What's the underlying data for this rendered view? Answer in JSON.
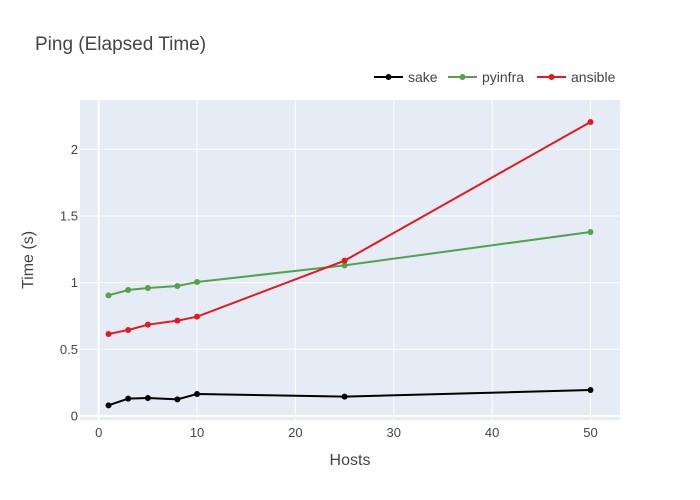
{
  "chart_data": {
    "type": "line",
    "title": "Ping (Elapsed Time)",
    "xlabel": "Hosts",
    "ylabel": "Time (s)",
    "xlim": [
      -1.9,
      53
    ],
    "ylim": [
      -0.03,
      2.37
    ],
    "x_ticks": [
      0,
      10,
      20,
      30,
      40,
      50
    ],
    "x_tick_labels": [
      "0",
      "10",
      "20",
      "30",
      "40",
      "50"
    ],
    "y_ticks": [
      0,
      0.5,
      1,
      1.5,
      2
    ],
    "y_tick_labels": [
      "0",
      "0.5",
      "1",
      "1.5",
      "2"
    ],
    "grid": true,
    "legend_position": "top-right",
    "background_color": "#e5ecf6",
    "x": [
      1,
      3,
      5,
      8,
      10,
      25,
      50
    ],
    "series": [
      {
        "name": "sake",
        "color": "#000000",
        "values": [
          0.08,
          0.13,
          0.135,
          0.125,
          0.165,
          0.145,
          0.195
        ]
      },
      {
        "name": "pyinfra",
        "color": "#54a24b",
        "values": [
          0.905,
          0.945,
          0.96,
          0.975,
          1.005,
          1.13,
          1.38
        ]
      },
      {
        "name": "ansible",
        "color": "#e41a1c",
        "values": [
          0.615,
          0.645,
          0.685,
          0.715,
          0.745,
          1.165,
          2.205
        ]
      }
    ]
  }
}
